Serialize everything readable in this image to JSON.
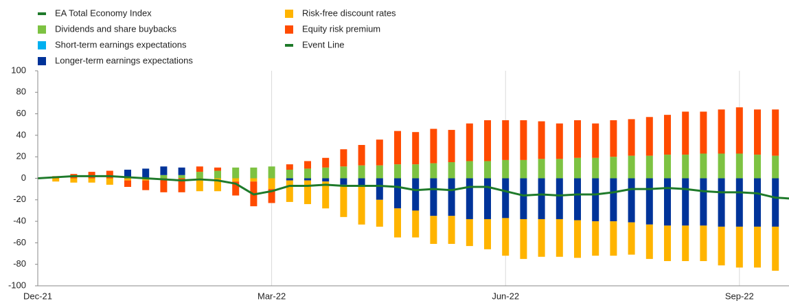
{
  "chart_data": {
    "type": "bar",
    "categories": [
      "Dec-21",
      null,
      null,
      null,
      null,
      null,
      null,
      null,
      null,
      null,
      null,
      null,
      null,
      "Mar-22",
      null,
      null,
      null,
      null,
      null,
      null,
      null,
      null,
      null,
      null,
      null,
      null,
      "Jun-22",
      null,
      null,
      null,
      null,
      null,
      null,
      null,
      null,
      null,
      null,
      null,
      null,
      "Sep-22",
      null,
      null,
      null
    ],
    "ylim": [
      -100,
      100
    ],
    "yticks": [
      -100,
      -80,
      -60,
      -40,
      -20,
      0,
      20,
      40,
      60,
      80,
      100
    ],
    "grid": true,
    "series": [
      {
        "name": "EA Total Economy Index",
        "type": "line",
        "color": "#1e7a2a",
        "values": [
          0,
          1,
          2,
          2,
          2,
          1,
          0,
          -1,
          -2,
          -1,
          -2,
          -5,
          -15,
          -12,
          -7,
          -7,
          -6,
          -7,
          -7,
          -7,
          -8,
          -11,
          -10,
          -11,
          -8,
          -8,
          -12,
          -16,
          -15,
          -16,
          -15,
          -15,
          -13,
          -10,
          -10,
          -9,
          -10,
          -12,
          -13,
          -13,
          -14,
          -18,
          -19
        ]
      },
      {
        "name": "Dividends and share buybacks",
        "type": "bar",
        "color": "#7dc242",
        "values": [
          0,
          0,
          0,
          0,
          0,
          0,
          0,
          3,
          3,
          6,
          7,
          10,
          10,
          11,
          8,
          9,
          10,
          11,
          12,
          12,
          13,
          13,
          14,
          15,
          16,
          16,
          17,
          17,
          18,
          18,
          19,
          19,
          20,
          21,
          21,
          22,
          22,
          23,
          23,
          23,
          22,
          21,
          20
        ]
      },
      {
        "name": "Short-term earnings expectations",
        "type": "bar",
        "color": "#00b0f0",
        "values": [
          0,
          0,
          0,
          0,
          0,
          0,
          0,
          0,
          0,
          0,
          0,
          0,
          0,
          0,
          0,
          0,
          0,
          0,
          0,
          0,
          0,
          0,
          0,
          0,
          0,
          0,
          0,
          0,
          0,
          0,
          0,
          0,
          0,
          0,
          0,
          0,
          0,
          0,
          0,
          0,
          0,
          0,
          0
        ]
      },
      {
        "name": "Longer-term earnings expectations",
        "type": "bar",
        "color": "#003399",
        "values": [
          0,
          0,
          0,
          0,
          0,
          8,
          9,
          8,
          7,
          0,
          0,
          0,
          0,
          0,
          -2,
          -2,
          -3,
          -6,
          -8,
          -20,
          -28,
          -30,
          -35,
          -35,
          -38,
          -38,
          -37,
          -38,
          -38,
          -38,
          -39,
          -40,
          -40,
          -41,
          -43,
          -44,
          -44,
          -44,
          -45,
          -45,
          -45,
          -45,
          -45
        ]
      },
      {
        "name": "Risk-free discount rates",
        "type": "bar",
        "color": "#ffb400",
        "values": [
          0,
          -3,
          -4,
          -4,
          -6,
          -2,
          -2,
          0,
          0,
          -12,
          -12,
          -3,
          -3,
          -10,
          -20,
          -22,
          -25,
          -30,
          -35,
          -25,
          -27,
          -25,
          -26,
          -26,
          -25,
          -28,
          -35,
          -37,
          -35,
          -35,
          -35,
          -32,
          -32,
          -30,
          -32,
          -33,
          -33,
          -33,
          -36,
          -38,
          -38,
          -41,
          -45
        ]
      },
      {
        "name": "Equity risk premium",
        "type": "bar",
        "color": "#ff4b00",
        "values": [
          0,
          2,
          4,
          6,
          7,
          -6,
          -9,
          -13,
          -13,
          5,
          3,
          -13,
          -23,
          -13,
          5,
          7,
          9,
          16,
          19,
          24,
          31,
          30,
          32,
          30,
          35,
          38,
          37,
          37,
          35,
          33,
          35,
          32,
          34,
          34,
          36,
          37,
          40,
          39,
          41,
          43,
          42,
          43,
          45
        ]
      },
      {
        "name": "Event Line",
        "type": "line",
        "color": "#1e7a2a",
        "values": [
          null,
          null,
          null,
          null,
          null,
          null,
          null,
          null,
          null,
          null,
          null,
          null,
          null,
          null,
          null,
          null,
          null,
          null,
          null,
          null,
          null,
          null,
          null,
          null,
          null,
          null,
          null,
          null,
          null,
          null,
          null,
          null,
          null,
          null,
          null,
          null,
          null,
          null,
          null,
          null,
          null,
          null,
          null
        ]
      }
    ]
  }
}
